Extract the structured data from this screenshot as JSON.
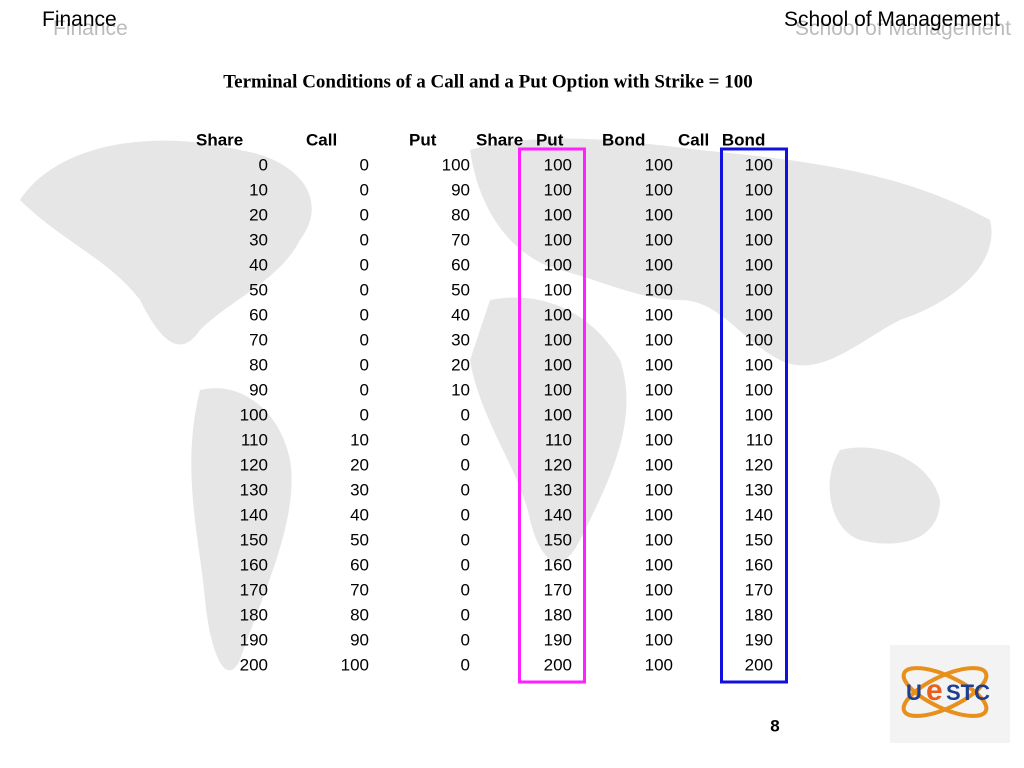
{
  "header": {
    "left": "Finance",
    "right": "School of Management"
  },
  "title": "Terminal Conditions of a Call and a Put Option with Strike = 100",
  "table": {
    "columns": [
      "Share",
      "Call",
      "Put",
      "Share Put",
      "Bond",
      "Call Bond"
    ],
    "rows": [
      [
        0,
        0,
        100,
        100,
        100,
        100
      ],
      [
        10,
        0,
        90,
        100,
        100,
        100
      ],
      [
        20,
        0,
        80,
        100,
        100,
        100
      ],
      [
        30,
        0,
        70,
        100,
        100,
        100
      ],
      [
        40,
        0,
        60,
        100,
        100,
        100
      ],
      [
        50,
        0,
        50,
        100,
        100,
        100
      ],
      [
        60,
        0,
        40,
        100,
        100,
        100
      ],
      [
        70,
        0,
        30,
        100,
        100,
        100
      ],
      [
        80,
        0,
        20,
        100,
        100,
        100
      ],
      [
        90,
        0,
        10,
        100,
        100,
        100
      ],
      [
        100,
        0,
        0,
        100,
        100,
        100
      ],
      [
        110,
        10,
        0,
        110,
        100,
        110
      ],
      [
        120,
        20,
        0,
        120,
        100,
        120
      ],
      [
        130,
        30,
        0,
        130,
        100,
        130
      ],
      [
        140,
        40,
        0,
        140,
        100,
        140
      ],
      [
        150,
        50,
        0,
        150,
        100,
        150
      ],
      [
        160,
        60,
        0,
        160,
        100,
        160
      ],
      [
        170,
        70,
        0,
        170,
        100,
        170
      ],
      [
        180,
        80,
        0,
        180,
        100,
        180
      ],
      [
        190,
        90,
        0,
        190,
        100,
        190
      ],
      [
        200,
        100,
        0,
        200,
        100,
        200
      ]
    ]
  },
  "page_number": "8",
  "logo": {
    "left": "U",
    "middle": "e",
    "right": "STC"
  }
}
